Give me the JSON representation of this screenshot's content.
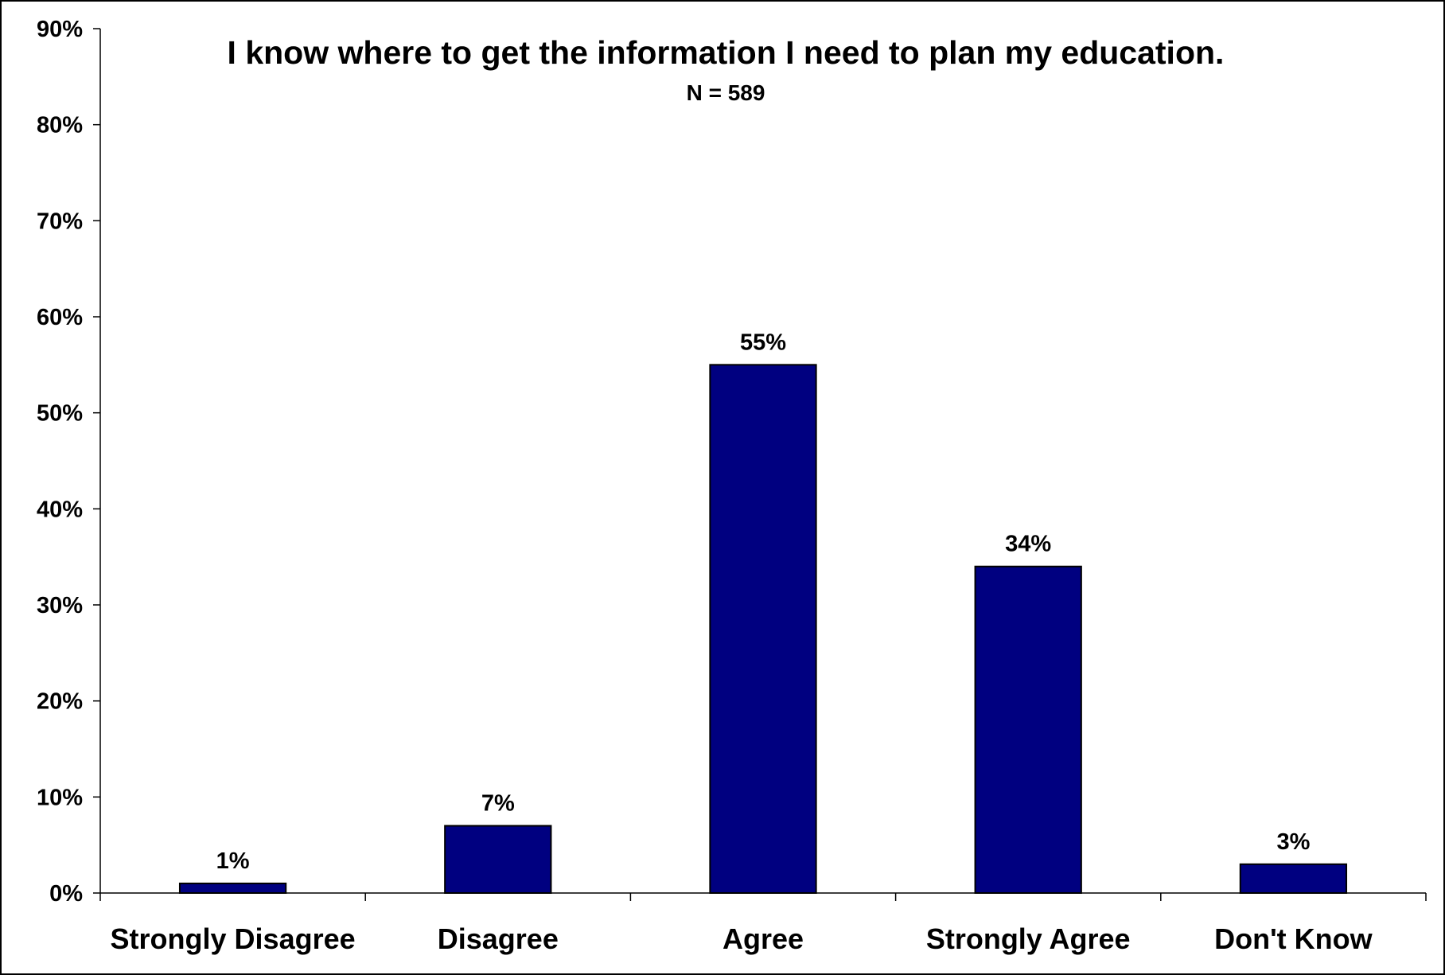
{
  "chart_data": {
    "type": "bar",
    "title": "I know where to get the information I need to plan my education.",
    "subtitle": "N = 589",
    "categories": [
      "Strongly Disagree",
      "Disagree",
      "Agree",
      "Strongly Agree",
      "Don't Know"
    ],
    "values": [
      1,
      7,
      55,
      34,
      3
    ],
    "data_labels": [
      "1%",
      "7%",
      "55%",
      "34%",
      "3%"
    ],
    "ylim": [
      0,
      90
    ],
    "yticks": [
      0,
      10,
      20,
      30,
      40,
      50,
      60,
      70,
      80,
      90
    ],
    "ytick_labels": [
      "0%",
      "10%",
      "20%",
      "30%",
      "40%",
      "50%",
      "60%",
      "70%",
      "80%",
      "90%"
    ],
    "xlabel": "",
    "ylabel": "",
    "grid": false,
    "legend": "none",
    "colors": {
      "bar": "#000080",
      "bar_edge": "#000000",
      "axis": "#000000",
      "background": "#ffffff"
    }
  }
}
